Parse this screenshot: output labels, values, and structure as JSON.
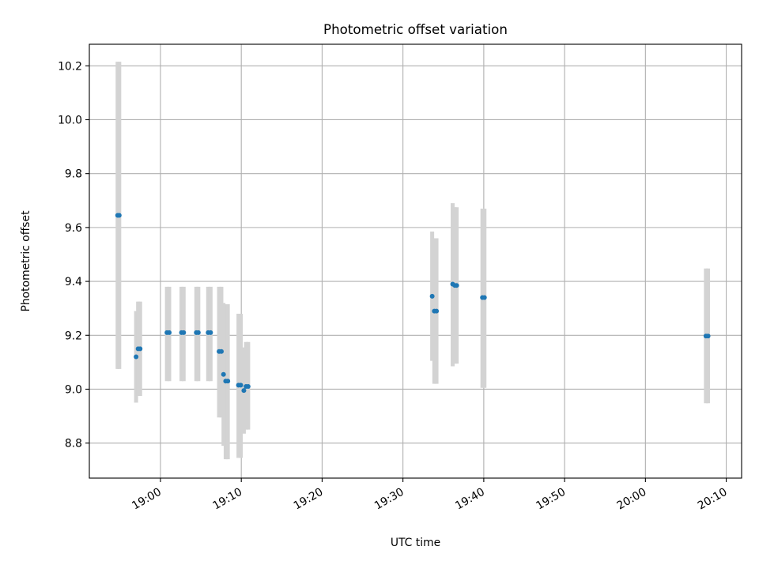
{
  "chart_data": {
    "type": "scatter",
    "title": "Photometric offset variation",
    "xlabel": "UTC time",
    "ylabel": "Photometric offset",
    "x_unit": "UTC clock time (HH:MM:SS)",
    "xlim": [
      "18:51:12",
      "20:11:54"
    ],
    "ylim": [
      8.67,
      10.28
    ],
    "x_ticks": [
      "19:00",
      "19:10",
      "19:20",
      "19:30",
      "19:40",
      "19:50",
      "20:00",
      "20:10"
    ],
    "y_ticks": [
      8.8,
      9.0,
      9.2,
      9.4,
      9.6,
      9.8,
      10.0,
      10.2
    ],
    "grid": true,
    "legend": "none",
    "colors": {
      "points": "#1f77b4",
      "errorbars": "#d3d3d3",
      "grid": "#b0b0b0"
    },
    "points": [
      {
        "x": "18:54:42",
        "y": 9.645,
        "lo": 9.075,
        "hi": 10.215
      },
      {
        "x": "18:54:54",
        "y": 9.645,
        "lo": 9.075,
        "hi": 10.215
      },
      {
        "x": "18:56:59",
        "y": 9.12,
        "lo": 8.95,
        "hi": 9.29
      },
      {
        "x": "18:57:14",
        "y": 9.15,
        "lo": 8.975,
        "hi": 9.325
      },
      {
        "x": "18:57:29",
        "y": 9.15,
        "lo": 8.975,
        "hi": 9.325
      },
      {
        "x": "19:00:48",
        "y": 9.21,
        "lo": 9.03,
        "hi": 9.38
      },
      {
        "x": "19:01:05",
        "y": 9.21,
        "lo": 9.03,
        "hi": 9.38
      },
      {
        "x": "19:02:36",
        "y": 9.21,
        "lo": 9.03,
        "hi": 9.38
      },
      {
        "x": "19:02:52",
        "y": 9.21,
        "lo": 9.03,
        "hi": 9.38
      },
      {
        "x": "19:04:26",
        "y": 9.21,
        "lo": 9.03,
        "hi": 9.38
      },
      {
        "x": "19:04:41",
        "y": 9.21,
        "lo": 9.03,
        "hi": 9.38
      },
      {
        "x": "19:05:54",
        "y": 9.21,
        "lo": 9.03,
        "hi": 9.38
      },
      {
        "x": "19:06:12",
        "y": 9.21,
        "lo": 9.03,
        "hi": 9.38
      },
      {
        "x": "19:07:15",
        "y": 9.14,
        "lo": 8.895,
        "hi": 9.38
      },
      {
        "x": "19:07:32",
        "y": 9.14,
        "lo": 8.895,
        "hi": 9.38
      },
      {
        "x": "19:07:48",
        "y": 9.055,
        "lo": 8.79,
        "hi": 9.32
      },
      {
        "x": "19:08:04",
        "y": 9.03,
        "lo": 8.74,
        "hi": 9.315
      },
      {
        "x": "19:08:20",
        "y": 9.03,
        "lo": 8.74,
        "hi": 9.315
      },
      {
        "x": "19:09:39",
        "y": 9.015,
        "lo": 8.745,
        "hi": 9.28
      },
      {
        "x": "19:09:56",
        "y": 9.015,
        "lo": 8.745,
        "hi": 9.28
      },
      {
        "x": "19:10:19",
        "y": 8.995,
        "lo": 8.835,
        "hi": 9.155
      },
      {
        "x": "19:10:35",
        "y": 9.01,
        "lo": 8.85,
        "hi": 9.175
      },
      {
        "x": "19:10:51",
        "y": 9.01,
        "lo": 8.85,
        "hi": 9.175
      },
      {
        "x": "19:33:37",
        "y": 9.345,
        "lo": 9.105,
        "hi": 9.585
      },
      {
        "x": "19:33:53",
        "y": 9.29,
        "lo": 9.02,
        "hi": 9.56
      },
      {
        "x": "19:34:09",
        "y": 9.29,
        "lo": 9.02,
        "hi": 9.56
      },
      {
        "x": "19:36:09",
        "y": 9.39,
        "lo": 9.085,
        "hi": 9.69
      },
      {
        "x": "19:36:25",
        "y": 9.385,
        "lo": 9.095,
        "hi": 9.675
      },
      {
        "x": "19:36:39",
        "y": 9.385,
        "lo": 9.095,
        "hi": 9.675
      },
      {
        "x": "19:39:50",
        "y": 9.34,
        "lo": 9.005,
        "hi": 9.67
      },
      {
        "x": "19:40:05",
        "y": 9.34,
        "lo": 9.005,
        "hi": 9.67
      },
      {
        "x": "20:07:29",
        "y": 9.197,
        "lo": 8.948,
        "hi": 9.448
      },
      {
        "x": "20:07:45",
        "y": 9.197,
        "lo": 8.948,
        "hi": 9.448
      }
    ]
  }
}
